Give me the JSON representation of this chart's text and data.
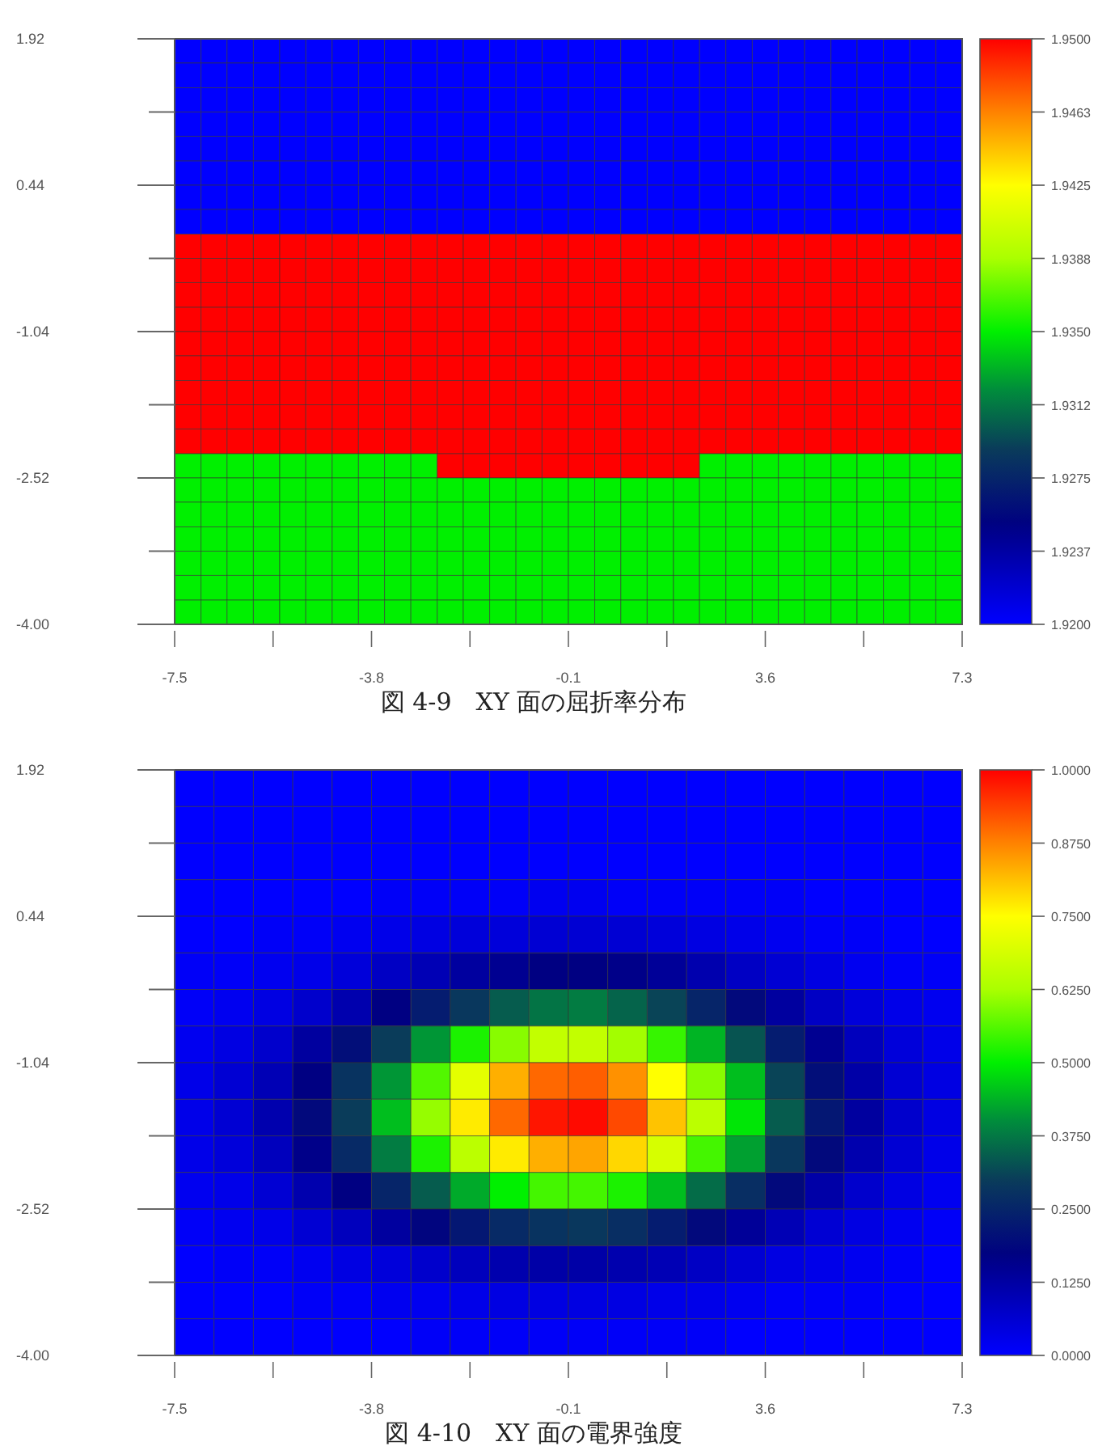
{
  "chart_data": [
    {
      "type": "heatmap",
      "title": "図 4-9　XY 面の屈折率分布",
      "x": [
        -7.25,
        -6.76,
        -6.27,
        -5.77,
        -5.28,
        -4.79,
        -4.29,
        -3.8,
        -3.31,
        -2.81,
        -2.32,
        -1.83,
        -1.33,
        -0.84,
        -0.35,
        0.15,
        0.64,
        1.13,
        1.63,
        2.12,
        2.61,
        3.11,
        3.6,
        4.09,
        4.59,
        5.08,
        5.57,
        6.07,
        6.56,
        7.05
      ],
      "y": [
        1.8,
        1.55,
        1.3,
        1.06,
        0.81,
        0.56,
        0.32,
        0.07,
        -0.18,
        -0.42,
        -0.67,
        -0.92,
        -1.16,
        -1.41,
        -1.66,
        -1.9,
        -2.15,
        -2.4,
        -2.64,
        -2.89,
        -3.14,
        -3.38,
        -3.63,
        -3.88
      ],
      "xlim": [
        -7.5,
        7.3
      ],
      "ylim": [
        -4.0,
        1.92
      ],
      "xticks": [
        -7.5,
        {
          "value": -5.65,
          "label": null
        },
        -3.8,
        {
          "value": -1.95,
          "label": null
        },
        -0.1,
        {
          "value": 1.75,
          "label": null
        },
        3.6,
        {
          "value": 5.45,
          "label": null
        },
        7.3
      ],
      "yticks": [
        1.92,
        {
          "value": 1.18,
          "label": null
        },
        0.44,
        {
          "value": -0.3,
          "label": null
        },
        -1.04,
        {
          "value": -1.78,
          "label": null
        },
        -2.52,
        {
          "value": -3.26,
          "label": null
        },
        {
          "value": -4.0,
          "label": "-4.00"
        }
      ],
      "clim": [
        1.92,
        1.95
      ],
      "cticks": [
        {
          "value": 1.95,
          "label": "1.9500"
        },
        {
          "value": 1.94625,
          "label": "1.9463"
        },
        {
          "value": 1.9425,
          "label": "1.9425"
        },
        {
          "value": 1.93875,
          "label": "1.9388"
        },
        {
          "value": 1.935,
          "label": "1.9350"
        },
        {
          "value": 1.93125,
          "label": "1.9312"
        },
        {
          "value": 1.9275,
          "label": "1.9275"
        },
        {
          "value": 1.92375,
          "label": "1.9237"
        },
        {
          "value": 1.92,
          "label": "1.9200"
        }
      ],
      "cells": [
        [
          1.92,
          1.92,
          1.92,
          1.92,
          1.92,
          1.92,
          1.92,
          1.92,
          1.92,
          1.92,
          1.92,
          1.92,
          1.92,
          1.92,
          1.92,
          1.92,
          1.92,
          1.92,
          1.92,
          1.92,
          1.92,
          1.92,
          1.92,
          1.92,
          1.92,
          1.92,
          1.92,
          1.92,
          1.92,
          1.92
        ],
        [
          1.92,
          1.92,
          1.92,
          1.92,
          1.92,
          1.92,
          1.92,
          1.92,
          1.92,
          1.92,
          1.92,
          1.92,
          1.92,
          1.92,
          1.92,
          1.92,
          1.92,
          1.92,
          1.92,
          1.92,
          1.92,
          1.92,
          1.92,
          1.92,
          1.92,
          1.92,
          1.92,
          1.92,
          1.92,
          1.92
        ],
        [
          1.92,
          1.92,
          1.92,
          1.92,
          1.92,
          1.92,
          1.92,
          1.92,
          1.92,
          1.92,
          1.92,
          1.92,
          1.92,
          1.92,
          1.92,
          1.92,
          1.92,
          1.92,
          1.92,
          1.92,
          1.92,
          1.92,
          1.92,
          1.92,
          1.92,
          1.92,
          1.92,
          1.92,
          1.92,
          1.92
        ],
        [
          1.92,
          1.92,
          1.92,
          1.92,
          1.92,
          1.92,
          1.92,
          1.92,
          1.92,
          1.92,
          1.92,
          1.92,
          1.92,
          1.92,
          1.92,
          1.92,
          1.92,
          1.92,
          1.92,
          1.92,
          1.92,
          1.92,
          1.92,
          1.92,
          1.92,
          1.92,
          1.92,
          1.92,
          1.92,
          1.92
        ],
        [
          1.92,
          1.92,
          1.92,
          1.92,
          1.92,
          1.92,
          1.92,
          1.92,
          1.92,
          1.92,
          1.92,
          1.92,
          1.92,
          1.92,
          1.92,
          1.92,
          1.92,
          1.92,
          1.92,
          1.92,
          1.92,
          1.92,
          1.92,
          1.92,
          1.92,
          1.92,
          1.92,
          1.92,
          1.92,
          1.92
        ],
        [
          1.92,
          1.92,
          1.92,
          1.92,
          1.92,
          1.92,
          1.92,
          1.92,
          1.92,
          1.92,
          1.92,
          1.92,
          1.92,
          1.92,
          1.92,
          1.92,
          1.92,
          1.92,
          1.92,
          1.92,
          1.92,
          1.92,
          1.92,
          1.92,
          1.92,
          1.92,
          1.92,
          1.92,
          1.92,
          1.92
        ],
        [
          1.92,
          1.92,
          1.92,
          1.92,
          1.92,
          1.92,
          1.92,
          1.92,
          1.92,
          1.92,
          1.92,
          1.92,
          1.92,
          1.92,
          1.92,
          1.92,
          1.92,
          1.92,
          1.92,
          1.92,
          1.92,
          1.92,
          1.92,
          1.92,
          1.92,
          1.92,
          1.92,
          1.92,
          1.92,
          1.92
        ],
        [
          1.92,
          1.92,
          1.92,
          1.92,
          1.92,
          1.92,
          1.92,
          1.92,
          1.92,
          1.92,
          1.92,
          1.92,
          1.92,
          1.92,
          1.92,
          1.92,
          1.92,
          1.92,
          1.92,
          1.92,
          1.92,
          1.92,
          1.92,
          1.92,
          1.92,
          1.92,
          1.92,
          1.92,
          1.92,
          1.92
        ],
        [
          1.95,
          1.95,
          1.95,
          1.95,
          1.95,
          1.95,
          1.95,
          1.95,
          1.95,
          1.95,
          1.95,
          1.95,
          1.95,
          1.95,
          1.95,
          1.95,
          1.95,
          1.95,
          1.95,
          1.95,
          1.95,
          1.95,
          1.95,
          1.95,
          1.95,
          1.95,
          1.95,
          1.95,
          1.95,
          1.95
        ],
        [
          1.95,
          1.95,
          1.95,
          1.95,
          1.95,
          1.95,
          1.95,
          1.95,
          1.95,
          1.95,
          1.95,
          1.95,
          1.95,
          1.95,
          1.95,
          1.95,
          1.95,
          1.95,
          1.95,
          1.95,
          1.95,
          1.95,
          1.95,
          1.95,
          1.95,
          1.95,
          1.95,
          1.95,
          1.95,
          1.95
        ],
        [
          1.95,
          1.95,
          1.95,
          1.95,
          1.95,
          1.95,
          1.95,
          1.95,
          1.95,
          1.95,
          1.95,
          1.95,
          1.95,
          1.95,
          1.95,
          1.95,
          1.95,
          1.95,
          1.95,
          1.95,
          1.95,
          1.95,
          1.95,
          1.95,
          1.95,
          1.95,
          1.95,
          1.95,
          1.95,
          1.95
        ],
        [
          1.95,
          1.95,
          1.95,
          1.95,
          1.95,
          1.95,
          1.95,
          1.95,
          1.95,
          1.95,
          1.95,
          1.95,
          1.95,
          1.95,
          1.95,
          1.95,
          1.95,
          1.95,
          1.95,
          1.95,
          1.95,
          1.95,
          1.95,
          1.95,
          1.95,
          1.95,
          1.95,
          1.95,
          1.95,
          1.95
        ],
        [
          1.95,
          1.95,
          1.95,
          1.95,
          1.95,
          1.95,
          1.95,
          1.95,
          1.95,
          1.95,
          1.95,
          1.95,
          1.95,
          1.95,
          1.95,
          1.95,
          1.95,
          1.95,
          1.95,
          1.95,
          1.95,
          1.95,
          1.95,
          1.95,
          1.95,
          1.95,
          1.95,
          1.95,
          1.95,
          1.95
        ],
        [
          1.95,
          1.95,
          1.95,
          1.95,
          1.95,
          1.95,
          1.95,
          1.95,
          1.95,
          1.95,
          1.95,
          1.95,
          1.95,
          1.95,
          1.95,
          1.95,
          1.95,
          1.95,
          1.95,
          1.95,
          1.95,
          1.95,
          1.95,
          1.95,
          1.95,
          1.95,
          1.95,
          1.95,
          1.95,
          1.95
        ],
        [
          1.95,
          1.95,
          1.95,
          1.95,
          1.95,
          1.95,
          1.95,
          1.95,
          1.95,
          1.95,
          1.95,
          1.95,
          1.95,
          1.95,
          1.95,
          1.95,
          1.95,
          1.95,
          1.95,
          1.95,
          1.95,
          1.95,
          1.95,
          1.95,
          1.95,
          1.95,
          1.95,
          1.95,
          1.95,
          1.95
        ],
        [
          1.95,
          1.95,
          1.95,
          1.95,
          1.95,
          1.95,
          1.95,
          1.95,
          1.95,
          1.95,
          1.95,
          1.95,
          1.95,
          1.95,
          1.95,
          1.95,
          1.95,
          1.95,
          1.95,
          1.95,
          1.95,
          1.95,
          1.95,
          1.95,
          1.95,
          1.95,
          1.95,
          1.95,
          1.95,
          1.95
        ],
        [
          1.95,
          1.95,
          1.95,
          1.95,
          1.95,
          1.95,
          1.95,
          1.95,
          1.95,
          1.95,
          1.95,
          1.95,
          1.95,
          1.95,
          1.95,
          1.95,
          1.95,
          1.95,
          1.95,
          1.95,
          1.95,
          1.95,
          1.95,
          1.95,
          1.95,
          1.95,
          1.95,
          1.95,
          1.95,
          1.95
        ],
        [
          1.935,
          1.935,
          1.935,
          1.935,
          1.935,
          1.935,
          1.935,
          1.935,
          1.935,
          1.935,
          1.95,
          1.95,
          1.95,
          1.95,
          1.95,
          1.95,
          1.95,
          1.95,
          1.95,
          1.95,
          1.935,
          1.935,
          1.935,
          1.935,
          1.935,
          1.935,
          1.935,
          1.935,
          1.935,
          1.935
        ],
        [
          1.935,
          1.935,
          1.935,
          1.935,
          1.935,
          1.935,
          1.935,
          1.935,
          1.935,
          1.935,
          1.935,
          1.935,
          1.935,
          1.935,
          1.935,
          1.935,
          1.935,
          1.935,
          1.935,
          1.935,
          1.935,
          1.935,
          1.935,
          1.935,
          1.935,
          1.935,
          1.935,
          1.935,
          1.935,
          1.935
        ],
        [
          1.935,
          1.935,
          1.935,
          1.935,
          1.935,
          1.935,
          1.935,
          1.935,
          1.935,
          1.935,
          1.935,
          1.935,
          1.935,
          1.935,
          1.935,
          1.935,
          1.935,
          1.935,
          1.935,
          1.935,
          1.935,
          1.935,
          1.935,
          1.935,
          1.935,
          1.935,
          1.935,
          1.935,
          1.935,
          1.935
        ],
        [
          1.935,
          1.935,
          1.935,
          1.935,
          1.935,
          1.935,
          1.935,
          1.935,
          1.935,
          1.935,
          1.935,
          1.935,
          1.935,
          1.935,
          1.935,
          1.935,
          1.935,
          1.935,
          1.935,
          1.935,
          1.935,
          1.935,
          1.935,
          1.935,
          1.935,
          1.935,
          1.935,
          1.935,
          1.935,
          1.935
        ],
        [
          1.935,
          1.935,
          1.935,
          1.935,
          1.935,
          1.935,
          1.935,
          1.935,
          1.935,
          1.935,
          1.935,
          1.935,
          1.935,
          1.935,
          1.935,
          1.935,
          1.935,
          1.935,
          1.935,
          1.935,
          1.935,
          1.935,
          1.935,
          1.935,
          1.935,
          1.935,
          1.935,
          1.935,
          1.935,
          1.935
        ],
        [
          1.935,
          1.935,
          1.935,
          1.935,
          1.935,
          1.935,
          1.935,
          1.935,
          1.935,
          1.935,
          1.935,
          1.935,
          1.935,
          1.935,
          1.935,
          1.935,
          1.935,
          1.935,
          1.935,
          1.935,
          1.935,
          1.935,
          1.935,
          1.935,
          1.935,
          1.935,
          1.935,
          1.935,
          1.935,
          1.935
        ],
        [
          1.935,
          1.935,
          1.935,
          1.935,
          1.935,
          1.935,
          1.935,
          1.935,
          1.935,
          1.935,
          1.935,
          1.935,
          1.935,
          1.935,
          1.935,
          1.935,
          1.935,
          1.935,
          1.935,
          1.935,
          1.935,
          1.935,
          1.935,
          1.935,
          1.935,
          1.935,
          1.935,
          1.935,
          1.935,
          1.935
        ]
      ]
    },
    {
      "type": "heatmap",
      "title": "図 4-10　XY 面の電界強度",
      "x": [
        -7.13,
        -6.39,
        -5.65,
        -4.91,
        -4.17,
        -3.43,
        -2.69,
        -1.95,
        -1.21,
        -0.47,
        0.27,
        1.01,
        1.75,
        2.49,
        3.23,
        3.97,
        4.71,
        5.45,
        6.19,
        6.93
      ],
      "y": [
        1.735,
        1.365,
        0.995,
        0.625,
        0.255,
        -0.115,
        -0.485,
        -0.855,
        -1.225,
        -1.595,
        -1.965,
        -2.335,
        -2.705,
        -3.075,
        -3.445,
        -3.815
      ],
      "xlim": [
        -7.5,
        7.3
      ],
      "ylim": [
        -4.0,
        1.92
      ],
      "xticks": [
        -7.5,
        {
          "value": -5.65,
          "label": null
        },
        -3.8,
        {
          "value": -1.95,
          "label": null
        },
        -0.1,
        {
          "value": 1.75,
          "label": null
        },
        3.6,
        {
          "value": 5.45,
          "label": null
        },
        7.3
      ],
      "yticks": [
        1.92,
        {
          "value": 1.18,
          "label": null
        },
        0.44,
        {
          "value": -0.3,
          "label": null
        },
        -1.04,
        {
          "value": -1.78,
          "label": null
        },
        -2.52,
        {
          "value": -3.26,
          "label": null
        },
        {
          "value": -4.0,
          "label": "-4.00"
        }
      ],
      "clim": [
        0,
        1
      ],
      "cticks": [
        {
          "value": 1,
          "label": "1.0000"
        },
        {
          "value": 0.875,
          "label": "0.8750"
        },
        {
          "value": 0.75,
          "label": "0.7500"
        },
        {
          "value": 0.625,
          "label": "0.6250"
        },
        {
          "value": 0.5,
          "label": "0.5000"
        },
        {
          "value": 0.375,
          "label": "0.3750"
        },
        {
          "value": 0.25,
          "label": "0.2500"
        },
        {
          "value": 0.125,
          "label": "0.1250"
        },
        {
          "value": 0,
          "label": "0.0000"
        }
      ],
      "cells": [
        [
          0,
          0,
          0,
          0,
          0,
          0,
          0,
          0,
          0,
          0,
          0,
          0,
          0,
          0,
          0,
          0,
          0,
          0,
          0,
          0
        ],
        [
          0,
          0,
          0,
          0,
          0,
          0,
          0,
          0,
          0,
          0,
          0,
          0,
          0,
          0,
          0,
          0,
          0,
          0,
          0,
          0
        ],
        [
          0,
          0,
          0,
          0,
          0,
          0,
          0,
          0,
          0,
          0,
          0,
          0,
          0,
          0,
          0,
          0,
          0,
          0,
          0,
          0
        ],
        [
          0,
          0,
          0,
          0,
          0,
          0.01,
          0.01,
          0.01,
          0.01,
          0.02,
          0.02,
          0.01,
          0.01,
          0.01,
          0.01,
          0.01,
          0,
          0,
          0,
          0
        ],
        [
          0,
          0,
          0.01,
          0.01,
          0.02,
          0.03,
          0.04,
          0.05,
          0.05,
          0.06,
          0.06,
          0.06,
          0.05,
          0.04,
          0.03,
          0.02,
          0.01,
          0.01,
          0,
          0
        ],
        [
          0.01,
          0.01,
          0.02,
          0.03,
          0.05,
          0.08,
          0.1,
          0.13,
          0.15,
          0.17,
          0.17,
          0.16,
          0.14,
          0.11,
          0.08,
          0.06,
          0.04,
          0.02,
          0.01,
          0.01
        ],
        [
          0.01,
          0.02,
          0.04,
          0.07,
          0.11,
          0.17,
          0.23,
          0.29,
          0.34,
          0.37,
          0.38,
          0.35,
          0.31,
          0.25,
          0.19,
          0.13,
          0.08,
          0.05,
          0.03,
          0.02
        ],
        [
          0.02,
          0.04,
          0.07,
          0.13,
          0.2,
          0.3,
          0.41,
          0.52,
          0.6,
          0.66,
          0.66,
          0.62,
          0.54,
          0.44,
          0.33,
          0.23,
          0.15,
          0.09,
          0.05,
          0.03
        ],
        [
          0.03,
          0.06,
          0.1,
          0.17,
          0.28,
          0.41,
          0.56,
          0.71,
          0.83,
          0.9,
          0.91,
          0.86,
          0.75,
          0.6,
          0.45,
          0.31,
          0.2,
          0.12,
          0.06,
          0.04
        ],
        [
          0.03,
          0.06,
          0.11,
          0.19,
          0.3,
          0.45,
          0.61,
          0.77,
          0.9,
          0.98,
          0.99,
          0.93,
          0.81,
          0.65,
          0.49,
          0.34,
          0.22,
          0.13,
          0.07,
          0.04
        ],
        [
          0.03,
          0.05,
          0.09,
          0.16,
          0.26,
          0.38,
          0.52,
          0.65,
          0.77,
          0.83,
          0.84,
          0.79,
          0.69,
          0.55,
          0.42,
          0.29,
          0.19,
          0.11,
          0.06,
          0.03
        ],
        [
          0.02,
          0.03,
          0.06,
          0.11,
          0.17,
          0.25,
          0.34,
          0.43,
          0.5,
          0.55,
          0.55,
          0.52,
          0.45,
          0.36,
          0.27,
          0.19,
          0.12,
          0.07,
          0.04,
          0.02
        ],
        [
          0.01,
          0.02,
          0.03,
          0.06,
          0.09,
          0.13,
          0.18,
          0.22,
          0.26,
          0.28,
          0.29,
          0.27,
          0.23,
          0.19,
          0.14,
          0.1,
          0.06,
          0.04,
          0.02,
          0.01
        ],
        [
          0,
          0.01,
          0.01,
          0.02,
          0.04,
          0.05,
          0.07,
          0.09,
          0.11,
          0.12,
          0.12,
          0.11,
          0.1,
          0.08,
          0.06,
          0.04,
          0.03,
          0.02,
          0.01,
          0
        ],
        [
          0,
          0,
          0,
          0.01,
          0.01,
          0.02,
          0.02,
          0.03,
          0.04,
          0.04,
          0.04,
          0.04,
          0.03,
          0.03,
          0.02,
          0.01,
          0.01,
          0.01,
          0,
          0
        ],
        [
          0,
          0,
          0,
          0,
          0,
          0,
          0.01,
          0.01,
          0.01,
          0.01,
          0.01,
          0.01,
          0.01,
          0.01,
          0,
          0,
          0,
          0,
          0,
          0
        ]
      ]
    }
  ]
}
